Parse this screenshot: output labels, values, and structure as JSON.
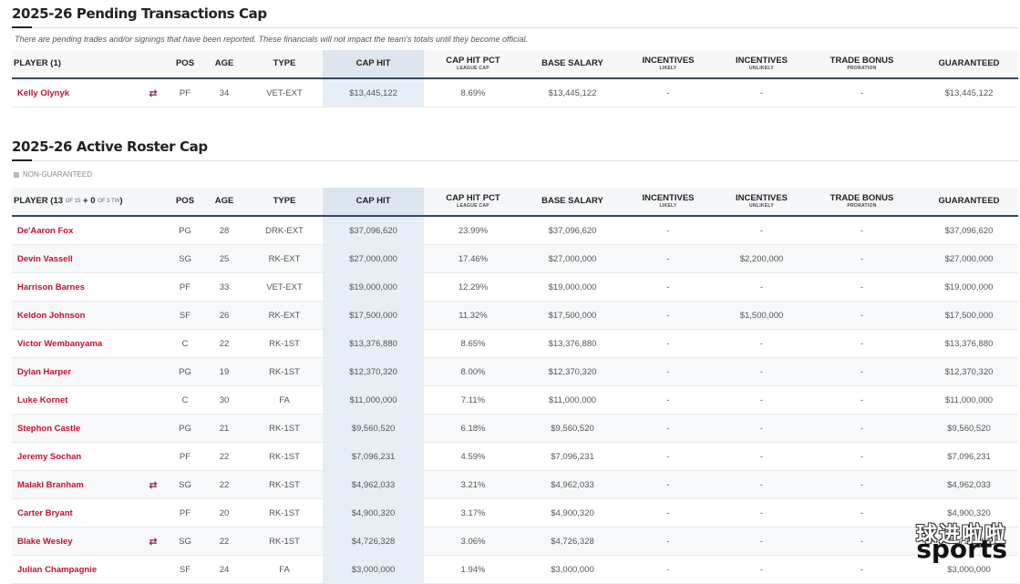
{
  "pending": {
    "title": "2025-26 Pending Transactions Cap",
    "note": "There are pending trades and/or signings that have been reported. These financials will not impact the team's totals until they become official.",
    "header": {
      "player": "PLAYER (1)",
      "pos": "POS",
      "age": "AGE",
      "type": "TYPE",
      "cap_hit": "CAP HIT",
      "cap_pct": "CAP HIT PCT",
      "cap_pct_sub": "LEAGUE CAP",
      "base": "BASE SALARY",
      "inc_likely": "INCENTIVES",
      "inc_likely_sub": "LIKELY",
      "inc_unlikely": "INCENTIVES",
      "inc_unlikely_sub": "UNLIKELY",
      "trade": "TRADE BONUS",
      "trade_sub": "PRORATION",
      "guaranteed": "GUARANTEED"
    },
    "rows": [
      {
        "name": "Kelly Olynyk",
        "trade_icon": "⇄",
        "pos": "PF",
        "age": "34",
        "type": "VET-EXT",
        "cap_hit": "$13,445,122",
        "pct": "8.69%",
        "base": "$13,445,122",
        "inc1": "-",
        "inc2": "-",
        "trade": "-",
        "guar": "$13,445,122"
      }
    ]
  },
  "roster": {
    "title": "2025-26 Active Roster Cap",
    "legend": "NON-GUARANTEED",
    "header": {
      "player_a": "PLAYER (",
      "count_std": "13",
      "of15": "OF 15",
      "plus": "+",
      "count_tw": "0",
      "of3": "OF 3 TW",
      "player_b": ")",
      "pos": "POS",
      "age": "AGE",
      "type": "TYPE",
      "cap_hit": "CAP HIT",
      "cap_pct": "CAP HIT PCT",
      "cap_pct_sub": "LEAGUE CAP",
      "base": "BASE SALARY",
      "inc_likely": "INCENTIVES",
      "inc_likely_sub": "LIKELY",
      "inc_unlikely": "INCENTIVES",
      "inc_unlikely_sub": "UNLIKELY",
      "trade": "TRADE BONUS",
      "trade_sub": "PRORATION",
      "guaranteed": "GUARANTEED"
    },
    "rows": [
      {
        "name": "De'Aaron Fox",
        "trade_icon": "",
        "pos": "PG",
        "age": "28",
        "type": "DRK-EXT",
        "cap_hit": "$37,096,620",
        "pct": "23.99%",
        "base": "$37,096,620",
        "inc1": "-",
        "inc2": "-",
        "trade": "-",
        "guar": "$37,096,620"
      },
      {
        "name": "Devin Vassell",
        "trade_icon": "",
        "pos": "SG",
        "age": "25",
        "type": "RK-EXT",
        "cap_hit": "$27,000,000",
        "pct": "17.46%",
        "base": "$27,000,000",
        "inc1": "-",
        "inc2": "$2,200,000",
        "trade": "-",
        "guar": "$27,000,000"
      },
      {
        "name": "Harrison Barnes",
        "trade_icon": "",
        "pos": "PF",
        "age": "33",
        "type": "VET-EXT",
        "cap_hit": "$19,000,000",
        "pct": "12.29%",
        "base": "$19,000,000",
        "inc1": "-",
        "inc2": "-",
        "trade": "-",
        "guar": "$19,000,000"
      },
      {
        "name": "Keldon Johnson",
        "trade_icon": "",
        "pos": "SF",
        "age": "26",
        "type": "RK-EXT",
        "cap_hit": "$17,500,000",
        "pct": "11.32%",
        "base": "$17,500,000",
        "inc1": "-",
        "inc2": "$1,500,000",
        "trade": "-",
        "guar": "$17,500,000"
      },
      {
        "name": "Victor Wembanyama",
        "trade_icon": "",
        "pos": "C",
        "age": "22",
        "type": "RK-1ST",
        "cap_hit": "$13,376,880",
        "pct": "8.65%",
        "base": "$13,376,880",
        "inc1": "-",
        "inc2": "-",
        "trade": "-",
        "guar": "$13,376,880"
      },
      {
        "name": "Dylan Harper",
        "trade_icon": "",
        "pos": "PG",
        "age": "19",
        "type": "RK-1ST",
        "cap_hit": "$12,370,320",
        "pct": "8.00%",
        "base": "$12,370,320",
        "inc1": "-",
        "inc2": "-",
        "trade": "-",
        "guar": "$12,370,320"
      },
      {
        "name": "Luke Kornet",
        "trade_icon": "",
        "pos": "C",
        "age": "30",
        "type": "FA",
        "cap_hit": "$11,000,000",
        "pct": "7.11%",
        "base": "$11,000,000",
        "inc1": "-",
        "inc2": "-",
        "trade": "-",
        "guar": "$11,000,000"
      },
      {
        "name": "Stephon Castle",
        "trade_icon": "",
        "pos": "PG",
        "age": "21",
        "type": "RK-1ST",
        "cap_hit": "$9,560,520",
        "pct": "6.18%",
        "base": "$9,560,520",
        "inc1": "-",
        "inc2": "-",
        "trade": "-",
        "guar": "$9,560,520"
      },
      {
        "name": "Jeremy Sochan",
        "trade_icon": "",
        "pos": "PF",
        "age": "22",
        "type": "RK-1ST",
        "cap_hit": "$7,096,231",
        "pct": "4.59%",
        "base": "$7,096,231",
        "inc1": "-",
        "inc2": "-",
        "trade": "-",
        "guar": "$7,096,231"
      },
      {
        "name": "Malaki Branham",
        "trade_icon": "⇄",
        "pos": "SG",
        "age": "22",
        "type": "RK-1ST",
        "cap_hit": "$4,962,033",
        "pct": "3.21%",
        "base": "$4,962,033",
        "inc1": "-",
        "inc2": "-",
        "trade": "-",
        "guar": "$4,962,033"
      },
      {
        "name": "Carter Bryant",
        "trade_icon": "",
        "pos": "PF",
        "age": "20",
        "type": "RK-1ST",
        "cap_hit": "$4,900,320",
        "pct": "3.17%",
        "base": "$4,900,320",
        "inc1": "-",
        "inc2": "-",
        "trade": "-",
        "guar": "$4,900,320"
      },
      {
        "name": "Blake Wesley",
        "trade_icon": "⇄",
        "pos": "SG",
        "age": "22",
        "type": "RK-1ST",
        "cap_hit": "$4,726,328",
        "pct": "3.06%",
        "base": "$4,726,328",
        "inc1": "-",
        "inc2": "-",
        "trade": "-",
        "guar": "$4,726,328"
      },
      {
        "name": "Julian Champagnie",
        "trade_icon": "",
        "pos": "SF",
        "age": "24",
        "type": "FA",
        "cap_hit": "$3,000,000",
        "pct": "1.94%",
        "base": "$3,000,000",
        "inc1": "-",
        "inc2": "-",
        "trade": "-",
        "guar": "$3,000,000"
      }
    ]
  },
  "watermark": {
    "cn": "球进啦啦",
    "en": "sports"
  }
}
